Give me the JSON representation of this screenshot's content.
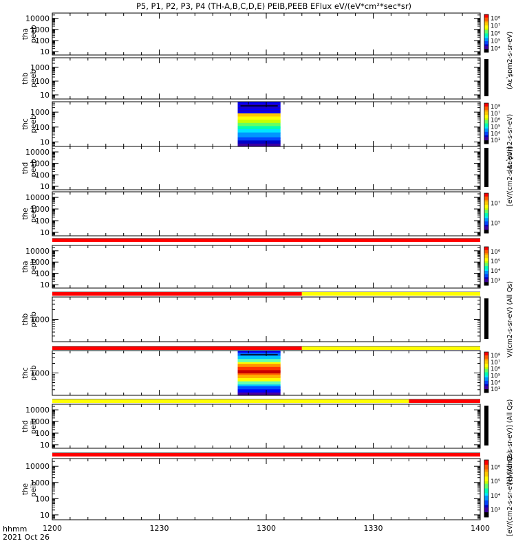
{
  "chart_data": {
    "type": "heatmap",
    "title": "P5, P1, P2, P3, P4 (TH-A,B,C,D,E) PEIB,PEEB EFlux eV/(eV*cm²*sec*sr)",
    "xlim": [
      "12:00",
      "14:00"
    ],
    "x_ticks": [
      "1200",
      "1230",
      "1300",
      "1330",
      "1400"
    ],
    "x_label_line1": "hhmm",
    "x_label_line2": "2021 Oct 26",
    "flag_bar_colors": {
      "red": "#ff0000",
      "yellow": "#ffff00"
    },
    "panels": [
      {
        "name_line1": "tha",
        "name_line2": "peeb",
        "y_log": true,
        "ylim": [
          5,
          30000
        ],
        "y_ticks": [
          "10",
          "100",
          "1000",
          "10000"
        ],
        "has_data": false,
        "colorbar": {
          "show": true,
          "ticks": [
            "10⁴",
            "10⁵",
            "10⁶",
            "10⁷",
            "10⁸"
          ]
        }
      },
      {
        "name_line1": "thb",
        "name_line2": "peeb",
        "y_log": true,
        "ylim": [
          5,
          5000
        ],
        "y_ticks": [
          "10",
          "100",
          "1000"
        ],
        "has_data": false,
        "colorbar": {
          "show": false
        }
      },
      {
        "name_line1": "thc",
        "name_line2": "peeb",
        "y_log": true,
        "ylim": [
          5,
          5000
        ],
        "y_ticks": [
          "10",
          "100",
          "1000"
        ],
        "has_data": true,
        "data_x": [
          "12:52",
          "13:04"
        ],
        "colorbar": {
          "show": true,
          "ticks": [
            "10³",
            "10⁴",
            "10⁵",
            "10⁶",
            "10⁷",
            "10⁸"
          ]
        }
      },
      {
        "name_line1": "thd",
        "name_line2": "peeb",
        "y_log": true,
        "ylim": [
          5,
          30000
        ],
        "y_ticks": [
          "10",
          "100",
          "1000",
          "10000"
        ],
        "has_data": false,
        "colorbar": {
          "show": false
        }
      },
      {
        "name_line1": "the",
        "name_line2": "peeb",
        "y_log": true,
        "ylim": [
          5,
          30000
        ],
        "y_ticks": [
          "10",
          "100",
          "1000",
          "10000"
        ],
        "has_data": false,
        "colorbar": {
          "show": true,
          "ticks": [
            "10⁵",
            "10⁷"
          ]
        },
        "flag_bar": [
          {
            "from": "12:00",
            "to": "14:00",
            "color": "red"
          }
        ]
      },
      {
        "name_line1": "tha",
        "name_line2": "peib",
        "y_log": true,
        "ylim": [
          5,
          30000
        ],
        "y_ticks": [
          "10",
          "100",
          "1000",
          "10000"
        ],
        "has_data": false,
        "colorbar": {
          "show": true,
          "ticks": [
            "10³",
            "10⁴",
            "10⁵",
            "10⁶"
          ]
        },
        "flag_bar": [
          {
            "from": "12:00",
            "to": "13:10",
            "color": "red"
          },
          {
            "from": "13:10",
            "to": "14:00",
            "color": "yellow"
          }
        ]
      },
      {
        "name_line1": "thb",
        "name_line2": "peib",
        "y_log": true,
        "ylim": [
          200,
          5000
        ],
        "y_ticks": [
          "1000"
        ],
        "has_data": false,
        "colorbar": {
          "show": false
        },
        "flag_bar": [
          {
            "from": "12:00",
            "to": "13:10",
            "color": "red"
          },
          {
            "from": "13:10",
            "to": "14:00",
            "color": "yellow"
          }
        ]
      },
      {
        "name_line1": "thc",
        "name_line2": "peib",
        "y_log": true,
        "ylim": [
          200,
          5000
        ],
        "y_ticks": [
          "1000"
        ],
        "has_data": true,
        "data_x": [
          "12:52",
          "13:04"
        ],
        "colorbar": {
          "show": true,
          "ticks": [
            "10³",
            "10⁴",
            "10⁵",
            "10⁶",
            "10⁷",
            "10⁸"
          ]
        },
        "flag_bar": [
          {
            "from": "12:00",
            "to": "13:40",
            "color": "yellow"
          },
          {
            "from": "13:40",
            "to": "14:00",
            "color": "red"
          }
        ]
      },
      {
        "name_line1": "thd",
        "name_line2": "peib",
        "y_log": true,
        "ylim": [
          5,
          30000
        ],
        "y_ticks": [
          "10",
          "100",
          "1000",
          "10000"
        ],
        "has_data": false,
        "colorbar": {
          "show": false
        },
        "flag_bar": [
          {
            "from": "12:00",
            "to": "14:00",
            "color": "red"
          }
        ]
      },
      {
        "name_line1": "the",
        "name_line2": "peib",
        "y_log": true,
        "ylim": [
          5,
          30000
        ],
        "y_ticks": [
          "10",
          "100",
          "1000",
          "10000"
        ],
        "has_data": false,
        "colorbar": {
          "show": true,
          "ticks": [
            "10³",
            "10⁴",
            "10⁵",
            "10⁶"
          ]
        }
      }
    ],
    "colorbar_labels": [
      "[eV/(cm2-s-sr-eV)] (All Qs)",
      "(Aɛʽʂ̴ɒm2-s-sr-eV)",
      "(Aɛʽʂ̴ɒm2-s-sr-eV)",
      "[eV/(cm2-s-sr-eV)]",
      "V/(cm2-s-sr-eV) (All Qs)",
      "[eV/(cm2-s-sr-eV)] (All Qs)"
    ]
  }
}
